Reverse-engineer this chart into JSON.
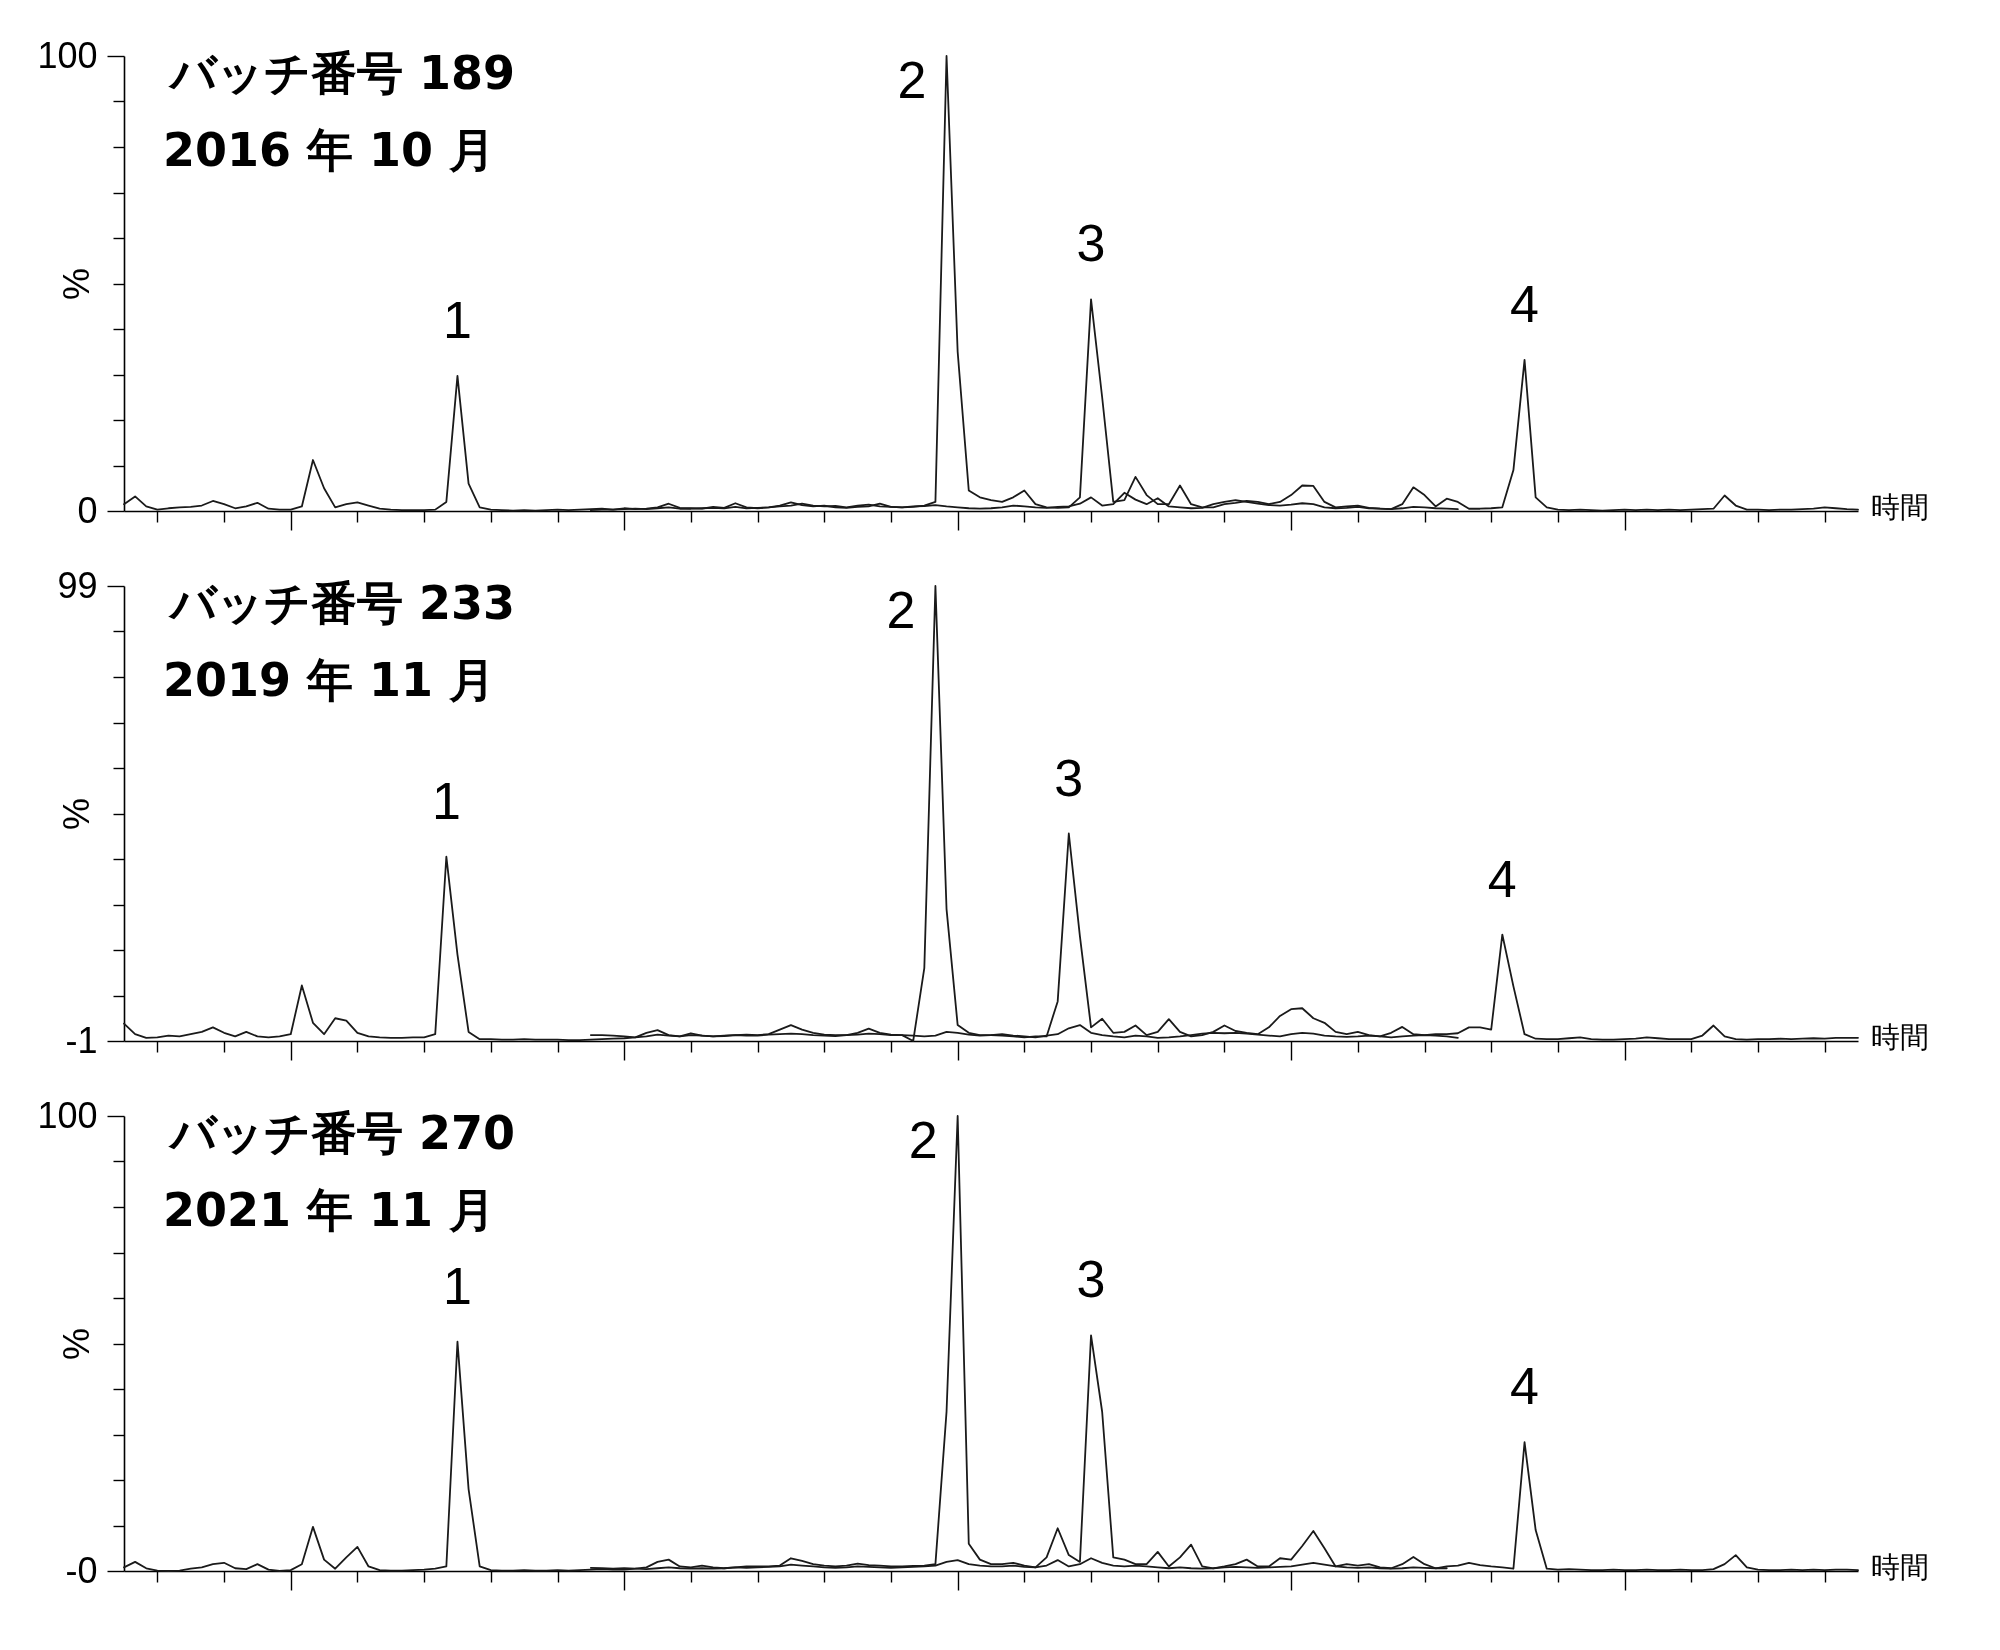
{
  "chart_data": [
    {
      "type": "line",
      "title": "バッチ番号 189",
      "subtitle": "2016 年 10 月",
      "xlabel": "時間",
      "ylabel": "%",
      "tick_labels": "y",
      "categories": [
        null,
        null,
        null,
        null,
        null,
        null,
        null,
        null,
        null,
        null,
        null,
        null,
        null,
        null,
        null,
        null,
        null,
        null,
        null,
        null,
        null,
        null,
        null,
        null,
        null,
        null,
        null,
        null,
        null,
        null,
        null,
        null,
        null,
        null,
        null,
        null,
        null,
        null,
        null,
        null,
        null,
        null,
        null,
        null,
        null,
        null,
        null,
        null,
        null,
        null,
        null,
        null,
        null,
        null,
        null,
        null,
        null,
        null,
        null,
        null,
        null,
        null,
        null,
        null,
        null,
        null,
        null,
        null,
        null,
        null,
        null,
        null,
        null,
        null,
        null,
        null,
        null,
        null,
        null,
        null,
        null,
        null,
        null,
        null,
        null,
        null,
        null,
        null,
        null,
        null,
        null,
        null,
        null,
        null,
        null,
        null,
        null,
        null,
        null,
        null,
        null,
        null,
        null,
        null,
        null,
        null,
        null,
        null,
        null,
        null,
        null,
        null,
        null,
        null,
        null,
        null,
        null,
        null,
        null,
        null,
        null,
        null,
        null,
        null,
        null,
        null,
        null,
        null,
        null,
        null,
        null,
        null,
        null,
        null,
        null,
        null,
        null,
        null,
        null,
        null,
        null,
        null,
        null,
        null,
        null,
        null,
        null,
        null,
        null,
        null,
        null,
        null,
        null,
        null,
        null,
        null,
        null
      ],
      "series": [
        {
          "color": "#1a1a1a",
          "values": [
            1.5,
            3.2,
            1.0,
            0.3,
            0.6,
            0.8,
            0.9,
            1.2,
            2.2,
            1.5,
            0.6,
            1.0,
            1.8,
            0.5,
            0.3,
            0.3,
            1.0,
            11.2,
            5.0,
            0.8,
            1.5,
            1.9,
            1.2,
            0.5,
            0.3,
            0.2,
            0.2,
            0.2,
            0.3,
            2.0,
            29.7,
            6.0,
            0.8,
            0.3,
            0.2,
            0.1,
            0.2,
            0.1,
            0.2,
            0.3,
            0.2,
            0.3,
            0.4,
            0.5,
            0.3,
            0.6,
            0.4,
            0.5,
            0.8,
            1.6,
            0.7,
            0.6,
            0.5,
            0.9,
            0.7,
            1.7,
            0.8,
            0.6,
            0.8,
            1.2,
            1.9,
            1.3,
            1.0,
            1.2,
            0.8,
            0.7,
            0.9,
            1.0,
            1.6,
            0.9,
            0.8,
            0.9,
            1.2,
            2.0,
            100,
            35,
            4.5,
            3.0,
            2.4,
            2.0,
            3.0,
            4.5,
            1.5,
            0.8,
            0.7,
            0.8,
            3.0,
            46.5,
            25,
            2.0,
            2.4,
            7.5,
            3.5,
            1.5,
            1.5,
            5.6,
            1.5,
            0.8,
            0.8,
            1.5,
            1.8,
            2.2,
            2.0,
            1.5,
            2.0,
            3.5,
            5.6,
            5.5,
            2.0,
            0.8,
            1.0,
            1.2,
            0.7,
            0.5,
            0.4,
            1.5,
            5.2,
            3.5,
            1.0,
            2.7,
            2.0,
            0.5,
            0.5,
            0.6,
            0.8,
            9.0,
            33.2,
            3.0,
            0.8,
            0.3,
            0.2,
            0.3,
            0.2,
            0.1,
            0.2,
            0.3,
            0.2,
            0.3,
            0.2,
            0.3,
            0.2,
            0.3,
            0.4,
            0.5,
            3.4,
            1.2,
            0.3,
            0.3,
            0.2,
            0.3,
            0.3,
            0.4,
            0.5,
            0.8,
            0.6,
            0.4,
            0.3
          ]
        },
        {
          "color": "#1a1a1a",
          "values": [
            null,
            null,
            null,
            null,
            null,
            null,
            null,
            null,
            null,
            null,
            null,
            null,
            null,
            null,
            null,
            null,
            null,
            null,
            null,
            null,
            null,
            null,
            null,
            null,
            null,
            null,
            null,
            null,
            null,
            null,
            null,
            null,
            null,
            null,
            null,
            null,
            null,
            null,
            null,
            null,
            null,
            null,
            0.2,
            0.3,
            0.3,
            0.4,
            0.5,
            0.4,
            0.6,
            0.8,
            0.5,
            0.5,
            0.6,
            0.7,
            0.6,
            0.9,
            0.6,
            0.7,
            0.8,
            1.0,
            1.2,
            1.6,
            1.2,
            1.0,
            1.1,
            0.8,
            1.2,
            1.4,
            1.0,
            0.9,
            0.8,
            1.0,
            1.1,
            1.3,
            1.0,
            0.8,
            0.6,
            0.5,
            0.6,
            0.8,
            1.2,
            1.0,
            0.8,
            0.7,
            0.9,
            1.0,
            1.6,
            3.0,
            1.2,
            1.5,
            4.0,
            2.5,
            1.5,
            2.8,
            1.0,
            0.8,
            0.6,
            0.7,
            1.5,
            2.0,
            2.4,
            2.0,
            1.6,
            1.3,
            1.2,
            1.4,
            1.7,
            1.5,
            0.8,
            0.6,
            0.7,
            0.9,
            0.6,
            0.5,
            0.4,
            0.6,
            0.9,
            0.8,
            0.6,
            0.5,
            0.4,
            null,
            null,
            null,
            null,
            null,
            null,
            null,
            null,
            null,
            null,
            null,
            null,
            null,
            null,
            null,
            null,
            null,
            null,
            null,
            null,
            null,
            null,
            null,
            null,
            null,
            null,
            null,
            null,
            null,
            null,
            null,
            null,
            null,
            null,
            null,
            null
          ]
        }
      ],
      "ylim": [
        0,
        100
      ],
      "yticks": [
        0,
        {
          "value": 10,
          "label": null
        },
        {
          "value": 20,
          "label": null
        },
        {
          "value": 30,
          "label": null
        },
        {
          "value": 40,
          "label": null
        },
        {
          "value": 50,
          "label": null
        },
        {
          "value": 60,
          "label": null
        },
        {
          "value": 70,
          "label": null
        },
        {
          "value": 80,
          "label": null
        },
        {
          "value": 90,
          "label": null
        },
        100
      ],
      "annotations": [
        {
          "text": "1",
          "y": 29.7
        },
        "2",
        {
          "text": "3",
          "y": 46.5
        },
        {
          "text": "4",
          "y": 33.2
        }
      ]
    },
    {
      "type": "line",
      "title": "バッチ番号 233",
      "subtitle": "2019 年 11 月",
      "xlabel": "時間",
      "ylabel": "%",
      "tick_labels": "y",
      "categories": [
        null,
        null,
        null,
        null,
        null,
        null,
        null,
        null,
        null,
        null,
        null,
        null,
        null,
        null,
        null,
        null,
        null,
        null,
        null,
        null,
        null,
        null,
        null,
        null,
        null,
        null,
        null,
        null,
        null,
        null,
        null,
        null,
        null,
        null,
        null,
        null,
        null,
        null,
        null,
        null,
        null,
        null,
        null,
        null,
        null,
        null,
        null,
        null,
        null,
        null,
        null,
        null,
        null,
        null,
        null,
        null,
        null,
        null,
        null,
        null,
        null,
        null,
        null,
        null,
        null,
        null,
        null,
        null,
        null,
        null,
        null,
        null,
        null,
        null,
        null,
        null,
        null,
        null,
        null,
        null,
        null,
        null,
        null,
        null,
        null,
        null,
        null,
        null,
        null,
        null,
        null,
        null,
        null,
        null,
        null,
        null,
        null,
        null,
        null,
        null,
        null,
        null,
        null,
        null,
        null,
        null,
        null,
        null,
        null,
        null,
        null,
        null,
        null,
        null,
        null,
        null,
        null,
        null,
        null,
        null,
        null,
        null,
        null,
        null,
        null,
        null,
        null,
        null,
        null,
        null,
        null,
        null,
        null,
        null,
        null,
        null,
        null,
        null,
        null,
        null,
        null,
        null,
        null,
        null,
        null,
        null,
        null,
        null,
        null,
        null,
        null,
        null,
        null,
        null,
        null,
        null,
        null
      ],
      "series": [
        {
          "color": "#1a1a1a",
          "values": [
            2.8,
            0.5,
            -0.3,
            -0.2,
            0.2,
            0.0,
            0.5,
            1.0,
            2.0,
            0.8,
            0.0,
            1.0,
            0.0,
            -0.2,
            0.0,
            0.5,
            11.2,
            3.0,
            0.5,
            4.0,
            3.5,
            0.8,
            0.0,
            -0.2,
            -0.3,
            -0.3,
            -0.2,
            -0.2,
            0.5,
            39.5,
            18,
            1.0,
            -0.6,
            -0.6,
            -0.7,
            -0.7,
            -0.6,
            -0.7,
            -0.7,
            -0.7,
            -0.8,
            -0.8,
            -0.7,
            -0.6,
            -0.5,
            -0.4,
            -0.2,
            0.8,
            1.4,
            0.3,
            0.0,
            0.7,
            0.2,
            0.0,
            0.2,
            0.3,
            0.4,
            0.3,
            0.5,
            1.5,
            2.5,
            1.5,
            0.8,
            0.4,
            0.3,
            0.3,
            0.8,
            1.7,
            0.8,
            0.4,
            0.3,
            -1.0,
            15,
            99,
            28,
            2.5,
            0.8,
            0.3,
            0.3,
            0.2,
            0.0,
            -0.2,
            0.0,
            0.0,
            7.7,
            44.6,
            22,
            2.0,
            3.9,
            0.8,
            1.0,
            2.4,
            0.3,
            1.0,
            3.8,
            1.0,
            0.0,
            0.3,
            1.0,
            2.4,
            1.2,
            0.8,
            0.5,
            2.0,
            4.5,
            6.0,
            6.2,
            4.0,
            3.0,
            1.0,
            0.5,
            1.0,
            0.3,
            0.0,
            0.8,
            2.1,
            0.5,
            0.3,
            0.5,
            0.5,
            0.7,
            2.0,
            2.0,
            1.5,
            22.4,
            11,
            0.5,
            -0.5,
            -0.6,
            -0.6,
            -0.4,
            -0.2,
            -0.6,
            -0.7,
            -0.7,
            -0.6,
            -0.5,
            -0.2,
            -0.4,
            -0.6,
            -0.6,
            -0.6,
            0.2,
            2.4,
            0.0,
            -0.6,
            -0.7,
            -0.6,
            -0.6,
            -0.5,
            -0.6,
            -0.5,
            -0.4,
            -0.5,
            -0.3,
            -0.3,
            -0.3
          ]
        },
        {
          "color": "#1a1a1a",
          "values": [
            null,
            null,
            null,
            null,
            null,
            null,
            null,
            null,
            null,
            null,
            null,
            null,
            null,
            null,
            null,
            null,
            null,
            null,
            null,
            null,
            null,
            null,
            null,
            null,
            null,
            null,
            null,
            null,
            null,
            null,
            null,
            null,
            null,
            null,
            null,
            null,
            null,
            null,
            null,
            null,
            null,
            null,
            0.3,
            0.3,
            0.2,
            0.0,
            -0.2,
            0.0,
            0.4,
            0.2,
            0.0,
            0.3,
            0.2,
            0.0,
            0.1,
            0.3,
            0.2,
            0.2,
            0.4,
            0.5,
            0.6,
            0.5,
            0.3,
            0.2,
            0.1,
            0.3,
            0.4,
            0.6,
            0.5,
            0.3,
            0.3,
            0.2,
            0.0,
            0.2,
            1.0,
            0.8,
            0.4,
            0.2,
            0.3,
            0.5,
            0.2,
            0.0,
            -0.2,
            0.2,
            0.5,
            1.8,
            2.5,
            0.8,
            0.3,
            0.0,
            -0.2,
            0.2,
            0.0,
            -0.3,
            -0.2,
            0.0,
            0.3,
            0.6,
            0.8,
            0.7,
            0.8,
            0.6,
            0.4,
            0.2,
            0.0,
            0.5,
            0.8,
            0.6,
            0.2,
            0.0,
            -0.1,
            0.0,
            0.2,
            0.0,
            -0.2,
            0.0,
            0.2,
            0.3,
            0.2,
            0.0,
            -0.3,
            null,
            null,
            null,
            null,
            null,
            null,
            null,
            null,
            null,
            null,
            null,
            null,
            null,
            null,
            null,
            null,
            null,
            null,
            null,
            null,
            null,
            null,
            null,
            null,
            null,
            null,
            null,
            null,
            null,
            null,
            null,
            null,
            null,
            null,
            null,
            null
          ]
        }
      ],
      "ylim": [
        -1,
        99
      ],
      "yticks": [
        -1,
        {
          "value": 9,
          "label": null
        },
        {
          "value": 19,
          "label": null
        },
        {
          "value": 29,
          "label": null
        },
        {
          "value": 39,
          "label": null
        },
        {
          "value": 49,
          "label": null
        },
        {
          "value": 59,
          "label": null
        },
        {
          "value": 69,
          "label": null
        },
        {
          "value": 79,
          "label": null
        },
        {
          "value": 89,
          "label": null
        },
        99
      ],
      "annotations": [
        {
          "text": "1",
          "y": 39.5
        },
        "2",
        {
          "text": "3",
          "y": 44.6
        },
        {
          "text": "4",
          "y": 22.4
        }
      ]
    },
    {
      "type": "line",
      "title": "バッチ番号 270",
      "subtitle": "2021 年 11 月",
      "xlabel": "時間",
      "ylabel": "%",
      "tick_labels": "y",
      "categories": [
        null,
        null,
        null,
        null,
        null,
        null,
        null,
        null,
        null,
        null,
        null,
        null,
        null,
        null,
        null,
        null,
        null,
        null,
        null,
        null,
        null,
        null,
        null,
        null,
        null,
        null,
        null,
        null,
        null,
        null,
        null,
        null,
        null,
        null,
        null,
        null,
        null,
        null,
        null,
        null,
        null,
        null,
        null,
        null,
        null,
        null,
        null,
        null,
        null,
        null,
        null,
        null,
        null,
        null,
        null,
        null,
        null,
        null,
        null,
        null,
        null,
        null,
        null,
        null,
        null,
        null,
        null,
        null,
        null,
        null,
        null,
        null,
        null,
        null,
        null,
        null,
        null,
        null,
        null,
        null,
        null,
        null,
        null,
        null,
        null,
        null,
        null,
        null,
        null,
        null,
        null,
        null,
        null,
        null,
        null,
        null,
        null,
        null,
        null,
        null,
        null,
        null,
        null,
        null,
        null,
        null,
        null,
        null,
        null,
        null,
        null,
        null,
        null,
        null,
        null,
        null,
        null,
        null,
        null,
        null,
        null,
        null,
        null,
        null,
        null,
        null,
        null,
        null,
        null,
        null,
        null,
        null,
        null,
        null,
        null,
        null,
        null,
        null,
        null,
        null,
        null,
        null,
        null,
        null,
        null,
        null,
        null,
        null,
        null,
        null,
        null,
        null,
        null,
        null,
        null,
        null,
        null
      ],
      "series": [
        {
          "color": "#1a1a1a",
          "values": [
            0.8,
            2.0,
            0.6,
            0.1,
            0.0,
            0.1,
            0.5,
            0.8,
            1.5,
            1.8,
            0.6,
            0.4,
            1.5,
            0.3,
            0.0,
            0.2,
            1.5,
            9.7,
            2.5,
            0.5,
            3.0,
            5.3,
            1.0,
            0.2,
            0.1,
            0.1,
            0.2,
            0.3,
            0.5,
            1.0,
            50.4,
            18,
            1.0,
            0.2,
            0.1,
            0.1,
            0.2,
            0.1,
            0.1,
            0.2,
            0.1,
            0.2,
            0.3,
            0.4,
            0.3,
            0.3,
            0.5,
            0.8,
            2.0,
            2.5,
            1.0,
            0.8,
            1.2,
            0.8,
            0.6,
            0.8,
            1.0,
            1.0,
            1.0,
            1.2,
            2.8,
            2.2,
            1.5,
            1.2,
            1.0,
            1.2,
            1.6,
            1.3,
            1.2,
            1.0,
            1.0,
            1.1,
            1.2,
            1.5,
            35,
            100,
            6.0,
            2.5,
            1.5,
            1.5,
            1.8,
            1.2,
            0.8,
            3.0,
            9.4,
            3.5,
            2.0,
            51.8,
            35,
            3.0,
            2.5,
            1.5,
            1.5,
            4.2,
            1.0,
            3.0,
            5.8,
            1.0,
            0.6,
            1.0,
            1.5,
            2.5,
            1.0,
            1.0,
            2.8,
            2.5,
            5.5,
            8.8,
            5.0,
            1.0,
            1.5,
            1.2,
            1.5,
            0.8,
            0.6,
            1.5,
            3.1,
            1.5,
            0.6,
            1.0,
            1.2,
            1.8,
            1.3,
            1.0,
            0.8,
            0.5,
            28.3,
            9.0,
            0.5,
            0.3,
            0.4,
            0.3,
            0.2,
            0.2,
            0.3,
            0.2,
            0.2,
            0.3,
            0.2,
            0.2,
            0.3,
            0.2,
            0.2,
            0.4,
            1.5,
            3.5,
            0.8,
            0.3,
            0.2,
            0.2,
            0.3,
            0.2,
            0.3,
            0.2,
            0.3,
            0.3,
            0.2
          ]
        },
        {
          "color": "#1a1a1a",
          "values": [
            null,
            null,
            null,
            null,
            null,
            null,
            null,
            null,
            null,
            null,
            null,
            null,
            null,
            null,
            null,
            null,
            null,
            null,
            null,
            null,
            null,
            null,
            null,
            null,
            null,
            null,
            null,
            null,
            null,
            null,
            null,
            null,
            null,
            null,
            null,
            null,
            null,
            null,
            null,
            null,
            null,
            null,
            0.7,
            0.6,
            0.5,
            0.6,
            0.5,
            0.4,
            0.6,
            0.8,
            0.6,
            0.5,
            0.6,
            0.5,
            0.6,
            0.8,
            0.7,
            0.8,
            0.9,
            1.0,
            1.4,
            1.2,
            1.0,
            0.8,
            0.7,
            0.8,
            1.0,
            0.9,
            0.8,
            0.7,
            0.8,
            0.9,
            1.0,
            1.2,
            2.0,
            2.4,
            1.5,
            1.2,
            1.0,
            1.0,
            1.2,
            0.9,
            0.8,
            1.2,
            2.4,
            1.0,
            1.5,
            2.8,
            1.8,
            1.2,
            1.0,
            1.2,
            1.0,
            0.8,
            0.6,
            0.8,
            0.6,
            0.5,
            0.6,
            0.8,
            0.9,
            0.8,
            0.7,
            0.8,
            0.9,
            1.0,
            1.4,
            1.8,
            1.4,
            1.0,
            0.8,
            0.7,
            0.8,
            0.6,
            0.5,
            0.6,
            0.8,
            0.7,
            0.6,
            0.6,
            null,
            null,
            null,
            null,
            null,
            null,
            null,
            null,
            null,
            null,
            null,
            null,
            null,
            null,
            null,
            null,
            null,
            null,
            null,
            null,
            null,
            null,
            null,
            null,
            null,
            null,
            null,
            null,
            null,
            null,
            null,
            null,
            null,
            null,
            null,
            null,
            null
          ]
        }
      ],
      "ylim": [
        0,
        100
      ],
      "yticks": [
        {
          "value": 0,
          "label": "-0"
        },
        {
          "value": 10,
          "label": null
        },
        {
          "value": 20,
          "label": null
        },
        {
          "value": 30,
          "label": null
        },
        {
          "value": 40,
          "label": null
        },
        {
          "value": 50,
          "label": null
        },
        {
          "value": 60,
          "label": null
        },
        {
          "value": 70,
          "label": null
        },
        {
          "value": 80,
          "label": null
        },
        {
          "value": 90,
          "label": null
        },
        100
      ],
      "annotations": [
        {
          "text": "1",
          "y": 50.4
        },
        "2",
        {
          "text": "3",
          "y": 51.8
        },
        {
          "text": "4",
          "y": 28.3
        }
      ]
    }
  ]
}
